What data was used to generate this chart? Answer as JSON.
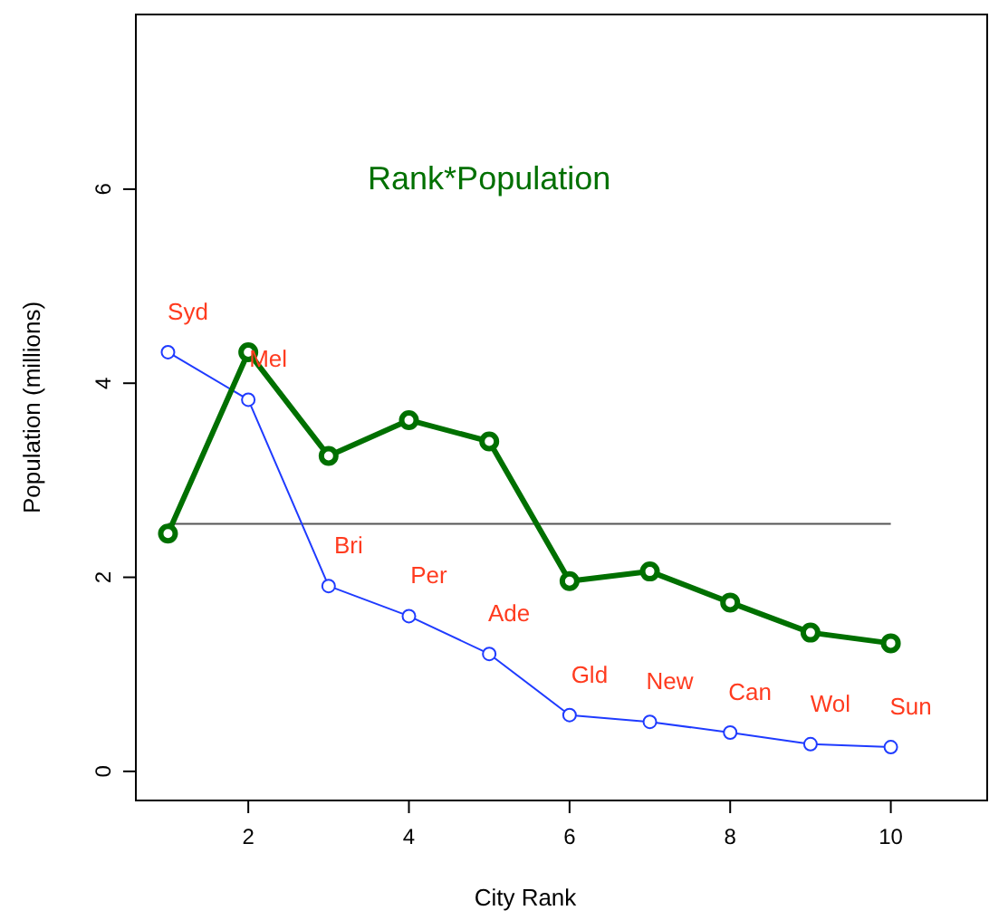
{
  "chart_data": {
    "type": "line",
    "xlabel": "City Rank",
    "ylabel": "Population (millions)",
    "x": [
      1,
      2,
      3,
      4,
      5,
      6,
      7,
      8,
      9,
      10
    ],
    "xlim": [
      0.6,
      11.2
    ],
    "ylim": [
      -0.3,
      7.8
    ],
    "xticks": [
      2,
      4,
      6,
      8,
      10
    ],
    "yticks": [
      0,
      2,
      4,
      6
    ],
    "grid": false,
    "legend": false,
    "marker": "circle",
    "line_style": "solid",
    "series": [
      {
        "color": "#1f3bff",
        "values": [
          4.32,
          3.83,
          1.91,
          1.6,
          1.21,
          0.58,
          0.51,
          0.4,
          0.28,
          0.25
        ]
      },
      {
        "name": "Rank*Population",
        "color": "#007000",
        "values": [
          2.45,
          4.32,
          3.25,
          3.62,
          3.4,
          1.96,
          2.06,
          1.74,
          1.43,
          1.32
        ]
      }
    ],
    "ref_lines": [
      {
        "axis": "y",
        "value": 2.55,
        "color": "#555555"
      }
    ],
    "annotations": [
      {
        "text": "Syd",
        "x": 1,
        "y": 4.32
      },
      {
        "text": "Mel",
        "x": 2,
        "y": 3.83
      },
      {
        "text": "Bri",
        "x": 3,
        "y": 1.91
      },
      {
        "text": "Per",
        "x": 4,
        "y": 1.6
      },
      {
        "text": "Ade",
        "x": 5,
        "y": 1.21
      },
      {
        "text": "Gld",
        "x": 6,
        "y": 0.58
      },
      {
        "text": "New",
        "x": 7,
        "y": 0.51
      },
      {
        "text": "Can",
        "x": 8,
        "y": 0.4
      },
      {
        "text": "Wol",
        "x": 9,
        "y": 0.28
      },
      {
        "text": "Sun",
        "x": 10,
        "y": 0.25
      }
    ]
  }
}
